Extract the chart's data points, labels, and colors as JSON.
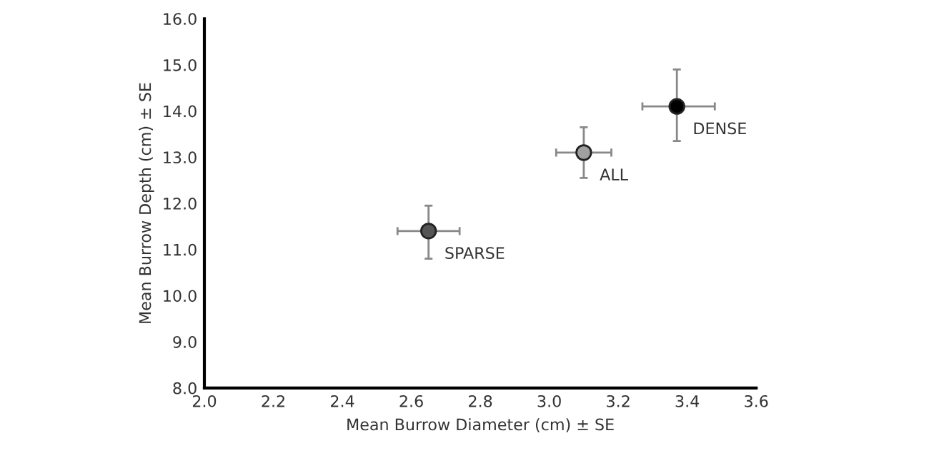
{
  "chart_data": {
    "type": "scatter",
    "xlabel": "Mean Burrow Diameter (cm) ± SE",
    "ylabel": "Mean Burrow Depth (cm) ± SE",
    "x": [
      2.65,
      3.1,
      3.37
    ],
    "series": [
      {
        "values": [
          11.4,
          13.1,
          14.1
        ],
        "colors": [
          "#555555",
          "#a0a0a0",
          "#000000"
        ],
        "errors": [
          [
            10.8,
            11.95
          ],
          [
            12.55,
            13.65
          ],
          [
            13.35,
            14.9
          ]
        ],
        "xerrors": [
          [
            2.56,
            2.74
          ],
          [
            3.02,
            3.18
          ],
          [
            3.27,
            3.48
          ]
        ]
      }
    ],
    "annotations": [
      {
        "text": "SPARSE",
        "x": 2.65,
        "y": 11.4
      },
      {
        "text": "ALL",
        "x": 3.1,
        "y": 13.1
      },
      {
        "text": "DENSE",
        "x": 3.37,
        "y": 14.1
      }
    ],
    "xlim": [
      2.0,
      3.6
    ],
    "ylim": [
      8.0,
      16.0
    ],
    "xticks": [
      {
        "value": 2.0,
        "label": "2.0"
      },
      {
        "value": 2.2,
        "label": "2.2"
      },
      {
        "value": 2.4,
        "label": "2.4"
      },
      {
        "value": 2.6,
        "label": "2.6"
      },
      {
        "value": 2.8,
        "label": "2.8"
      },
      {
        "value": 3.0,
        "label": "3.0"
      },
      {
        "value": 3.2,
        "label": "3.2"
      },
      {
        "value": 3.4,
        "label": "3.4"
      },
      {
        "value": 3.6,
        "label": "3.6"
      }
    ],
    "yticks": [
      {
        "value": 8.0,
        "label": "8.0"
      },
      {
        "value": 9.0,
        "label": "9.0"
      },
      {
        "value": 10.0,
        "label": "10.0"
      },
      {
        "value": 11.0,
        "label": "11.0"
      },
      {
        "value": 12.0,
        "label": "12.0"
      },
      {
        "value": 13.0,
        "label": "13.0"
      },
      {
        "value": 14.0,
        "label": "14.0"
      },
      {
        "value": 15.0,
        "label": "15.0"
      },
      {
        "value": 16.0,
        "label": "16.0"
      }
    ],
    "grid": false,
    "legend": false,
    "marker": "circle"
  }
}
